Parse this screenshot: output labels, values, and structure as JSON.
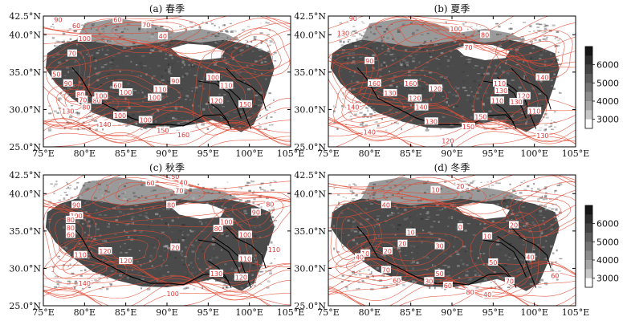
{
  "panels": [
    {
      "title": "(a) 春季",
      "contour_labels": [
        "90",
        "60",
        "70",
        "40",
        "60",
        "70",
        "100",
        "50",
        "90",
        "80",
        "70",
        "80",
        "80",
        "100",
        "60",
        "100",
        "100",
        "110",
        "90",
        "130",
        "100",
        "140",
        "100",
        "150",
        "160",
        "100",
        "110",
        "120",
        "150"
      ]
    },
    {
      "title": "(b) 夏季",
      "contour_labels": [
        "90",
        "130",
        "100",
        "80",
        "70",
        "90",
        "120",
        "130",
        "140",
        "120",
        "110",
        "110",
        "120",
        "130",
        "130",
        "140",
        "140",
        "110",
        "130",
        "150",
        "160",
        "140",
        "150",
        "120",
        "130",
        "160"
      ]
    },
    {
      "title": "(c) 秋季",
      "contour_labels": [
        "50",
        "60",
        "70",
        "40",
        "80",
        "90",
        "100",
        "80",
        "80",
        "60",
        "90",
        "80",
        "100",
        "80",
        "100",
        "120",
        "20",
        "110",
        "110",
        "110",
        "130",
        "120",
        "140",
        "100",
        "120"
      ]
    },
    {
      "title": "(d) 冬季",
      "contour_labels": [
        "20",
        "10",
        "40",
        "0",
        "10",
        "20",
        "20",
        "10",
        "20",
        "10",
        "30",
        "40",
        "50",
        "40",
        "70",
        "60",
        "30",
        "50",
        "60",
        "80",
        "70",
        "40",
        "60"
      ]
    }
  ],
  "axes": {
    "x_ticks": [
      "75°E",
      "80°E",
      "85°E",
      "90°E",
      "95°E",
      "100°E",
      "105°E"
    ],
    "y_ticks": [
      "42.5°N",
      "40.0°N",
      "35.0°N",
      "30.0°N",
      "25.0°N"
    ]
  },
  "colorbar": {
    "ticks": [
      "6000",
      "5000",
      "4000",
      "3000"
    ],
    "colors": [
      "#161616",
      "#2d2d2d",
      "#444444",
      "#5c5c5c",
      "#747474",
      "#8c8c8c",
      "#a6a6a6",
      "#c6c6c6",
      "#ffffff"
    ]
  },
  "chart_data": {
    "type": "heatmap",
    "x": [
      75,
      80,
      85,
      90,
      95,
      100,
      105
    ],
    "y": [
      42.5,
      40.0,
      35.0,
      30.0,
      25.0
    ],
    "xlim": [
      75,
      105
    ],
    "ylim": [
      25,
      42.5
    ],
    "colorbar_range": [
      2500,
      7000
    ],
    "colorbar_ticks": [
      6000,
      5000,
      4000,
      3000
    ],
    "overlay": "red contour lines with labeled values over grayscale elevation shading",
    "panels": [
      "(a) 春季",
      "(b) 夏季",
      "(c) 秋季",
      "(d) 冬季"
    ]
  }
}
